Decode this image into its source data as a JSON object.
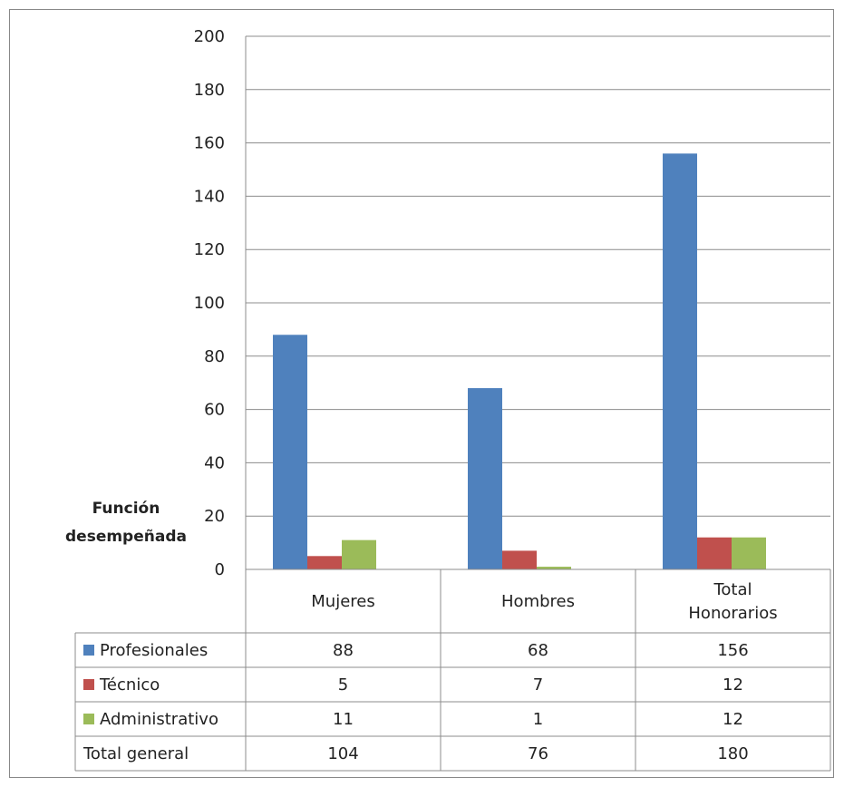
{
  "chart_data": {
    "type": "bar",
    "categories": [
      "Mujeres",
      "Hombres",
      "Total Honorarios"
    ],
    "category_lines": [
      [
        "Mujeres"
      ],
      [
        "Hombres"
      ],
      [
        "Total",
        "Honorarios"
      ]
    ],
    "series": [
      {
        "name": "Profesionales",
        "values": [
          88,
          68,
          156
        ],
        "color": "#4f81bd"
      },
      {
        "name": "Técnico",
        "values": [
          5,
          7,
          12
        ],
        "color": "#c0504d"
      },
      {
        "name": "Administrativo",
        "values": [
          11,
          1,
          12
        ],
        "color": "#9bbb59"
      }
    ],
    "totals": {
      "label": "Total general",
      "values": [
        104,
        76,
        180
      ]
    },
    "row_header": [
      "Función",
      "desempeñada"
    ],
    "yticks": [
      0,
      20,
      40,
      60,
      80,
      100,
      120,
      140,
      160,
      180,
      200
    ],
    "ylim": [
      0,
      200
    ],
    "grid": true,
    "legend": "data-table"
  }
}
